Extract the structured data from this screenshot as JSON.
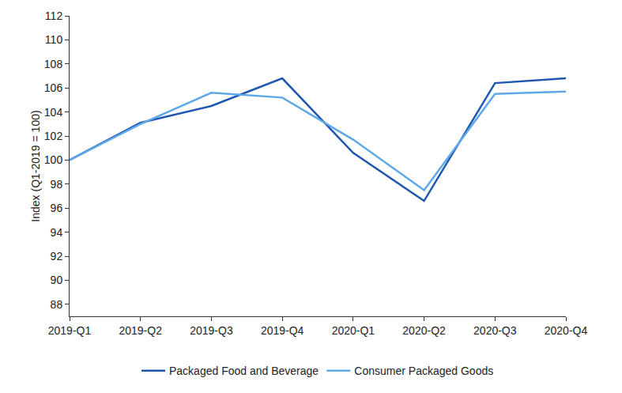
{
  "chart_data": {
    "type": "line",
    "y_label": "Index (Q1-2019 = 100)",
    "categories": [
      "2019-Q1",
      "2019-Q2",
      "2019-Q3",
      "2019-Q4",
      "2020-Q1",
      "2020-Q2",
      "2020-Q3",
      "2020-Q4"
    ],
    "series": [
      {
        "name": "Packaged Food and Beverage",
        "color": "#1f56b0",
        "values": [
          100,
          103.1,
          104.5,
          106.8,
          100.6,
          96.6,
          106.4,
          106.8
        ]
      },
      {
        "name": "Consumer Packaged Goods",
        "color": "#5ea8e8",
        "values": [
          100,
          103.0,
          105.6,
          105.2,
          101.7,
          97.5,
          105.5,
          105.7
        ]
      }
    ],
    "ylim": [
      87,
      112
    ],
    "yticks": [
      88,
      90,
      92,
      94,
      96,
      98,
      100,
      102,
      104,
      106,
      108,
      110,
      112
    ],
    "grid": false,
    "legend": "bottom"
  }
}
